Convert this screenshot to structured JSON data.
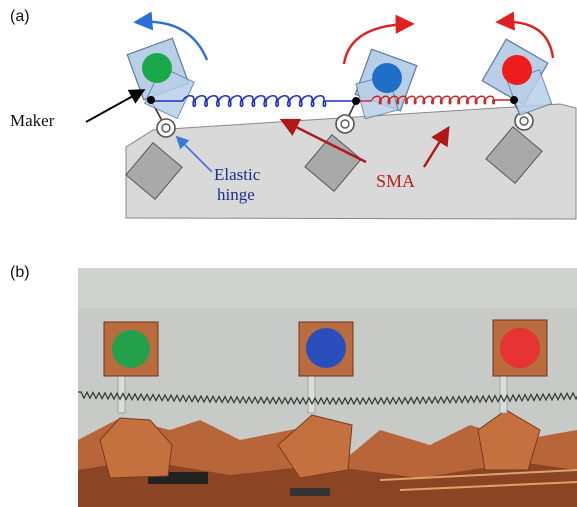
{
  "panels": [
    {
      "label": "(a)"
    },
    {
      "label": "(b)"
    }
  ],
  "annotations": {
    "marker": "Maker",
    "elastic_hinge_line1": "Elastic",
    "elastic_hinge_line2": "hinge",
    "sma": "SMA"
  },
  "markers": [
    {
      "color_name": "green",
      "color": "#1aa84a",
      "rotation_direction": "counterclockwise",
      "arrow_color": "#2a6fd6"
    },
    {
      "color_name": "blue",
      "color": "#1f6fc8",
      "rotation_direction": "clockwise",
      "arrow_color": "#e02020"
    },
    {
      "color_name": "red",
      "color": "#ee1c1c",
      "rotation_direction": "clockwise",
      "arrow_color": "#e02020"
    }
  ],
  "colors": {
    "base_fill": "#d9d9d9",
    "block_fill": "#a9a9a9",
    "elastic_spring": "#1e2fc8",
    "sma_spring": "#cc2020",
    "label_blue": "#1e2f8a",
    "label_red": "#c0201a",
    "photo_background": "#c7cac6",
    "copper": "#b8653a"
  },
  "icons": [
    "curved-rotation-arrow-icon",
    "pin-joint-icon",
    "pointer-arrow-icon"
  ]
}
